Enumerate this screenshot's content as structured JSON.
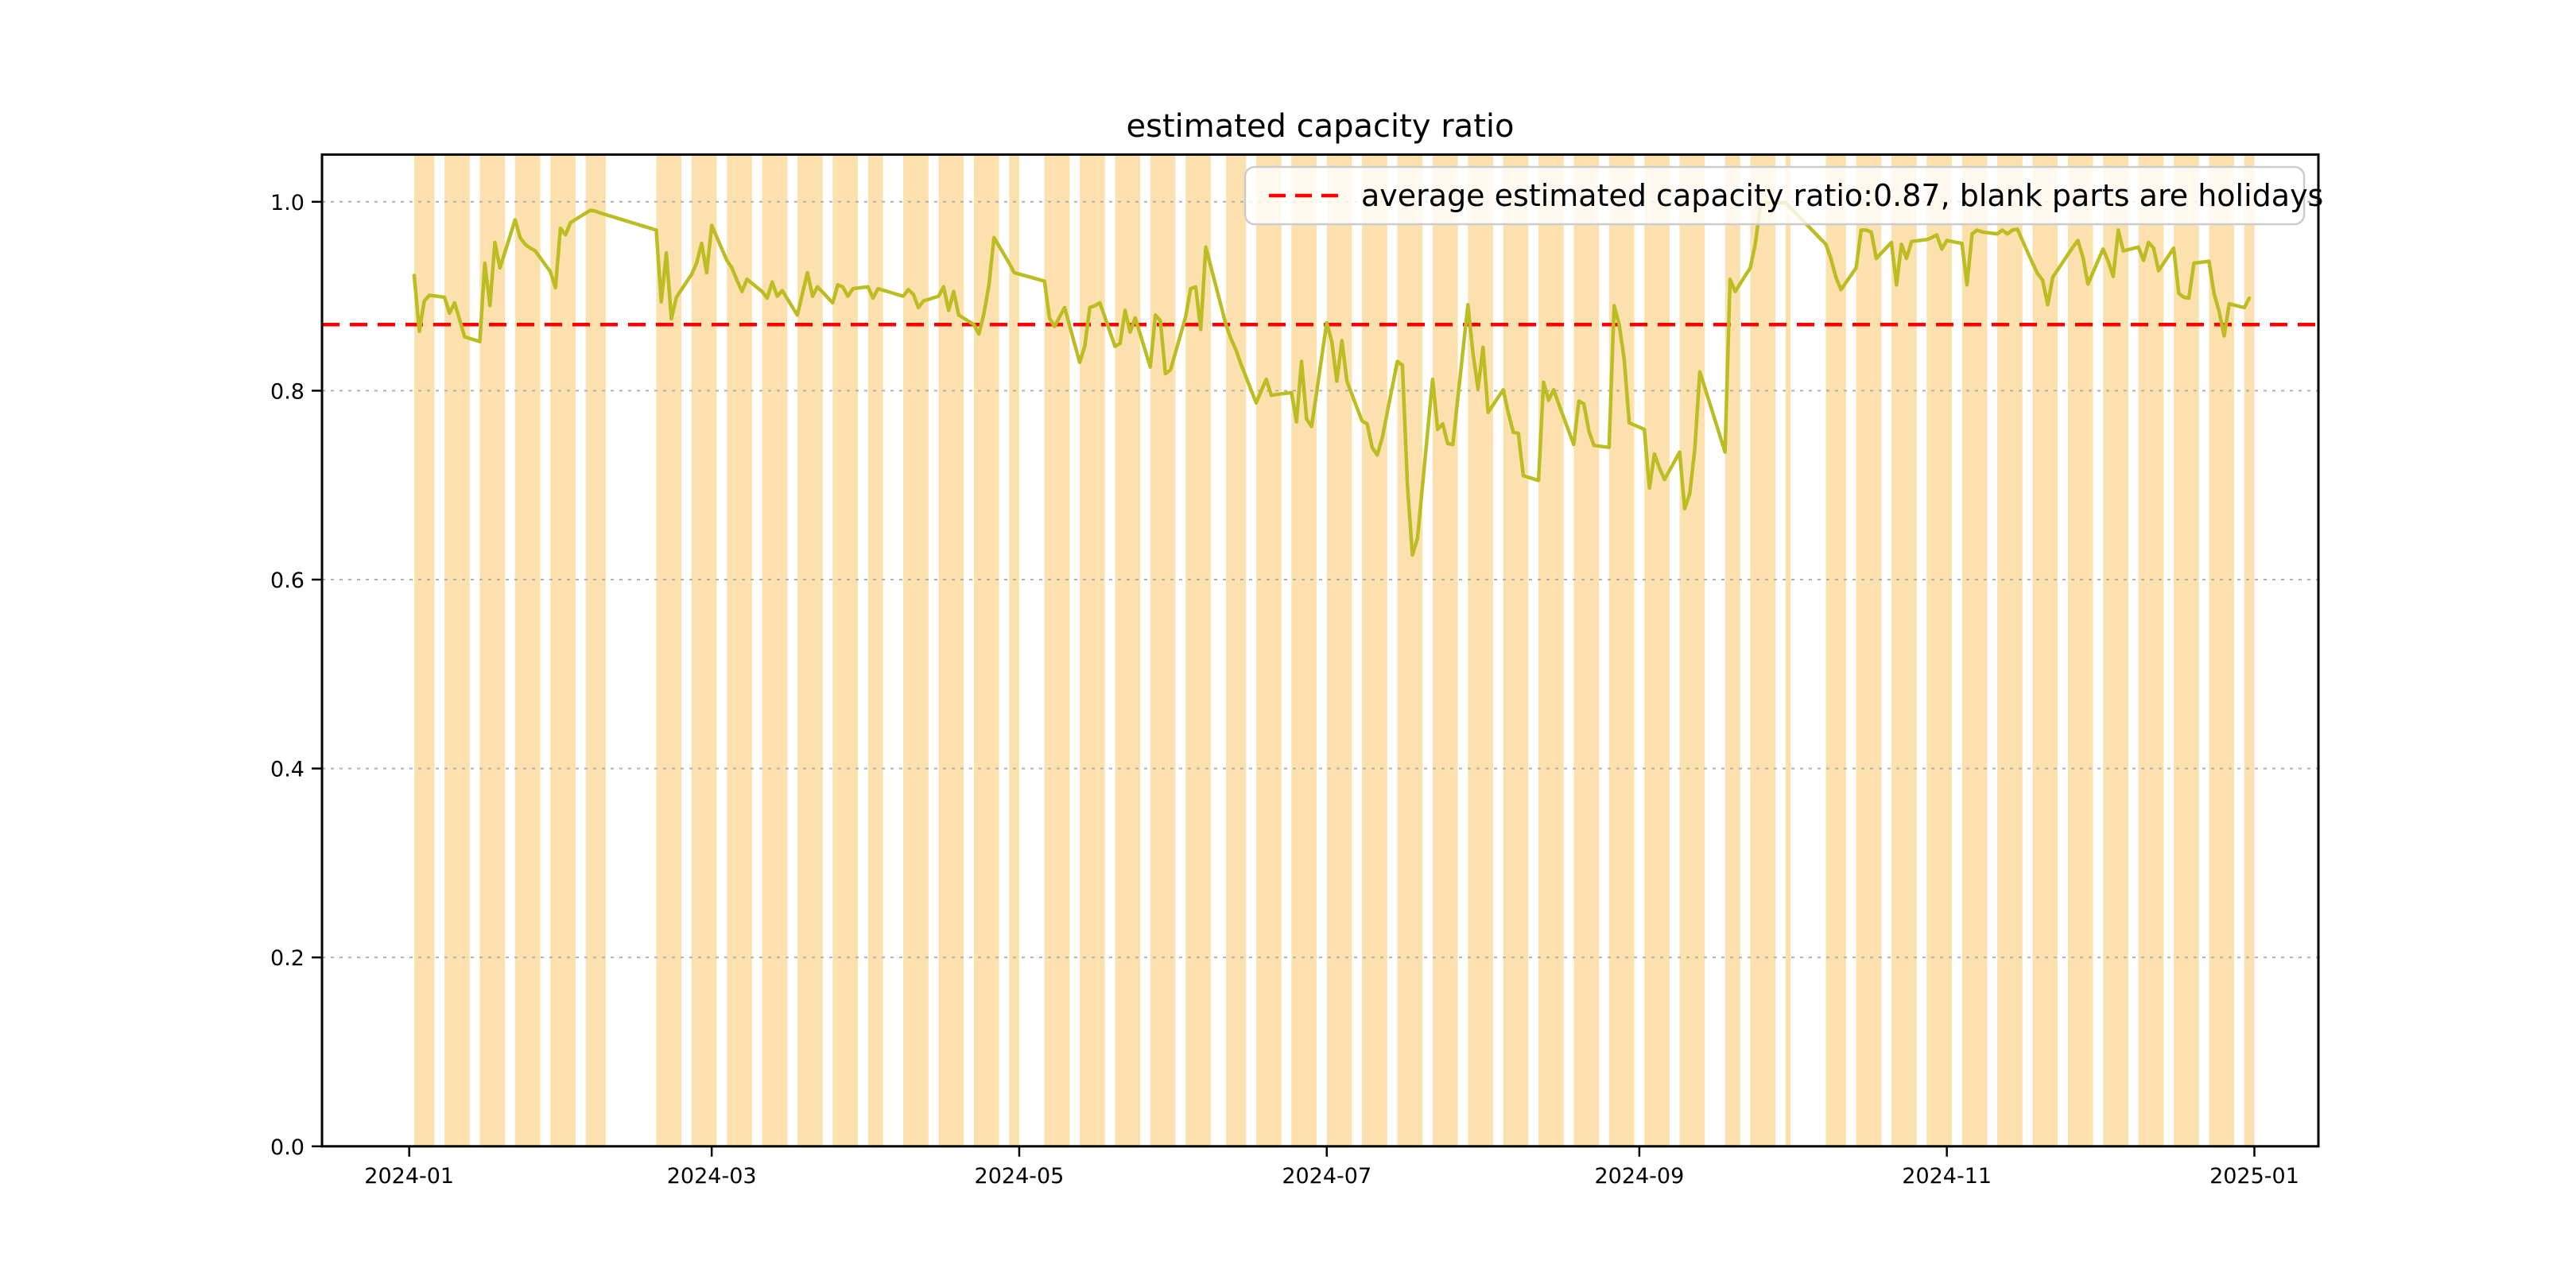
{
  "title": "estimated capacity ratio",
  "legend": {
    "label": "average estimated capacity ratio:0.87, blank parts are holidays",
    "marker_color": "#ff0000",
    "marker_style": "dashed",
    "box_border_color": "#cccccc",
    "box_fill": "rgba(255,255,255,0.8)"
  },
  "axes": {
    "x_tick_labels": [
      "2024-01",
      "2024-03",
      "2024-05",
      "2024-07",
      "2024-09",
      "2024-11",
      "2025-01"
    ],
    "x_tick_days": [
      0,
      60,
      121,
      182,
      244,
      305,
      366
    ],
    "y_tick_labels": [
      "0.0",
      "0.2",
      "0.4",
      "0.6",
      "0.8",
      "1.0"
    ],
    "y_tick_values": [
      0.0,
      0.2,
      0.4,
      0.6,
      0.8,
      1.0
    ],
    "y_gridline_values": [
      0.2,
      0.4,
      0.6,
      0.8,
      1.0
    ],
    "grid_color": "#b0b0b0",
    "spine_color": "#000000"
  },
  "chart_data": {
    "type": "line",
    "title": "estimated capacity ratio",
    "x_unit": "days since 2024-01-01 (trading days only; blank parts are holidays)",
    "xlim_days": [
      -17.3,
      378.7
    ],
    "ylim": [
      0.0,
      1.05
    ],
    "grid": "dashed horizontal",
    "legend_position": "upper right",
    "average_line": {
      "value": 0.87,
      "color": "#ff0000",
      "style": "dashed"
    },
    "holiday_bands": {
      "color": "#fce1ae",
      "weeks_day_spans": [
        [
          1,
          5
        ],
        [
          7,
          12
        ],
        [
          14,
          19
        ],
        [
          21,
          26
        ],
        [
          28,
          33
        ],
        [
          35,
          39
        ],
        [
          49,
          54
        ],
        [
          56,
          61
        ],
        [
          63,
          68
        ],
        [
          70,
          75
        ],
        [
          77,
          82
        ],
        [
          84,
          89
        ],
        [
          91,
          94
        ],
        [
          98,
          103
        ],
        [
          105,
          110
        ],
        [
          112,
          117
        ],
        [
          119,
          121
        ],
        [
          126,
          131
        ],
        [
          133,
          138
        ],
        [
          140,
          145
        ],
        [
          147,
          152
        ],
        [
          154,
          159
        ],
        [
          162,
          166
        ],
        [
          168,
          173
        ],
        [
          175,
          180
        ],
        [
          182,
          187
        ],
        [
          189,
          194
        ],
        [
          196,
          201
        ],
        [
          203,
          208
        ],
        [
          210,
          215
        ],
        [
          217,
          222
        ],
        [
          224,
          229
        ],
        [
          231,
          236
        ],
        [
          238,
          243
        ],
        [
          245,
          250
        ],
        [
          252,
          257
        ],
        [
          261,
          264
        ],
        [
          266,
          271
        ],
        [
          273,
          274
        ],
        [
          281,
          285
        ],
        [
          287,
          292
        ],
        [
          294,
          299
        ],
        [
          301,
          306
        ],
        [
          308,
          313
        ],
        [
          315,
          320
        ],
        [
          322,
          327
        ],
        [
          329,
          334
        ],
        [
          336,
          341
        ],
        [
          343,
          348
        ],
        [
          350,
          355
        ],
        [
          357,
          362
        ],
        [
          364,
          366
        ]
      ]
    },
    "series": [
      {
        "name": "estimated capacity ratio",
        "color": "#bcbd22",
        "points": [
          [
            1,
            0.922
          ],
          [
            2,
            0.863
          ],
          [
            3,
            0.895
          ],
          [
            4,
            0.901
          ],
          [
            7,
            0.899
          ],
          [
            8,
            0.882
          ],
          [
            9,
            0.893
          ],
          [
            10,
            0.875
          ],
          [
            11,
            0.857
          ],
          [
            14,
            0.852
          ],
          [
            15,
            0.935
          ],
          [
            16,
            0.89
          ],
          [
            17,
            0.957
          ],
          [
            18,
            0.93
          ],
          [
            21,
            0.981
          ],
          [
            22,
            0.962
          ],
          [
            23,
            0.955
          ],
          [
            24,
            0.951
          ],
          [
            25,
            0.948
          ],
          [
            28,
            0.926
          ],
          [
            29,
            0.909
          ],
          [
            30,
            0.972
          ],
          [
            31,
            0.965
          ],
          [
            32,
            0.978
          ],
          [
            35,
            0.988
          ],
          [
            36,
            0.991
          ],
          [
            37,
            0.99
          ],
          [
            38,
            0.988
          ],
          [
            49,
            0.97
          ],
          [
            50,
            0.894
          ],
          [
            51,
            0.946
          ],
          [
            52,
            0.876
          ],
          [
            53,
            0.899
          ],
          [
            56,
            0.923
          ],
          [
            57,
            0.935
          ],
          [
            58,
            0.956
          ],
          [
            59,
            0.925
          ],
          [
            60,
            0.975
          ],
          [
            63,
            0.938
          ],
          [
            64,
            0.93
          ],
          [
            65,
            0.917
          ],
          [
            66,
            0.905
          ],
          [
            67,
            0.918
          ],
          [
            70,
            0.905
          ],
          [
            71,
            0.898
          ],
          [
            72,
            0.915
          ],
          [
            73,
            0.9
          ],
          [
            74,
            0.906
          ],
          [
            77,
            0.88
          ],
          [
            78,
            0.903
          ],
          [
            79,
            0.925
          ],
          [
            80,
            0.9
          ],
          [
            81,
            0.91
          ],
          [
            84,
            0.893
          ],
          [
            85,
            0.912
          ],
          [
            86,
            0.91
          ],
          [
            87,
            0.9
          ],
          [
            88,
            0.908
          ],
          [
            91,
            0.91
          ],
          [
            92,
            0.898
          ],
          [
            93,
            0.908
          ],
          [
            98,
            0.9
          ],
          [
            99,
            0.907
          ],
          [
            100,
            0.902
          ],
          [
            101,
            0.888
          ],
          [
            102,
            0.895
          ],
          [
            105,
            0.9
          ],
          [
            106,
            0.91
          ],
          [
            107,
            0.885
          ],
          [
            108,
            0.905
          ],
          [
            109,
            0.88
          ],
          [
            112,
            0.87
          ],
          [
            113,
            0.86
          ],
          [
            114,
            0.882
          ],
          [
            115,
            0.912
          ],
          [
            116,
            0.962
          ],
          [
            119,
            0.935
          ],
          [
            120,
            0.925
          ],
          [
            126,
            0.916
          ],
          [
            127,
            0.877
          ],
          [
            128,
            0.868
          ],
          [
            129,
            0.878
          ],
          [
            130,
            0.888
          ],
          [
            133,
            0.83
          ],
          [
            134,
            0.847
          ],
          [
            135,
            0.888
          ],
          [
            136,
            0.89
          ],
          [
            137,
            0.893
          ],
          [
            140,
            0.847
          ],
          [
            141,
            0.85
          ],
          [
            142,
            0.885
          ],
          [
            143,
            0.862
          ],
          [
            144,
            0.877
          ],
          [
            147,
            0.825
          ],
          [
            148,
            0.88
          ],
          [
            149,
            0.874
          ],
          [
            150,
            0.818
          ],
          [
            151,
            0.822
          ],
          [
            154,
            0.878
          ],
          [
            155,
            0.908
          ],
          [
            156,
            0.91
          ],
          [
            157,
            0.865
          ],
          [
            158,
            0.952
          ],
          [
            162,
            0.87
          ],
          [
            163,
            0.855
          ],
          [
            164,
            0.843
          ],
          [
            165,
            0.828
          ],
          [
            168,
            0.787
          ],
          [
            169,
            0.8
          ],
          [
            170,
            0.812
          ],
          [
            171,
            0.795
          ],
          [
            172,
            0.796
          ],
          [
            175,
            0.798
          ],
          [
            176,
            0.767
          ],
          [
            177,
            0.831
          ],
          [
            178,
            0.77
          ],
          [
            179,
            0.762
          ],
          [
            182,
            0.872
          ],
          [
            183,
            0.852
          ],
          [
            184,
            0.81
          ],
          [
            185,
            0.853
          ],
          [
            186,
            0.81
          ],
          [
            189,
            0.768
          ],
          [
            190,
            0.765
          ],
          [
            191,
            0.74
          ],
          [
            192,
            0.732
          ],
          [
            193,
            0.75
          ],
          [
            196,
            0.831
          ],
          [
            197,
            0.827
          ],
          [
            198,
            0.7
          ],
          [
            199,
            0.626
          ],
          [
            200,
            0.644
          ],
          [
            203,
            0.812
          ],
          [
            204,
            0.759
          ],
          [
            205,
            0.765
          ],
          [
            206,
            0.744
          ],
          [
            207,
            0.743
          ],
          [
            210,
            0.891
          ],
          [
            211,
            0.84
          ],
          [
            212,
            0.802
          ],
          [
            213,
            0.846
          ],
          [
            214,
            0.777
          ],
          [
            217,
            0.801
          ],
          [
            218,
            0.777
          ],
          [
            219,
            0.756
          ],
          [
            220,
            0.755
          ],
          [
            221,
            0.71
          ],
          [
            224,
            0.705
          ],
          [
            225,
            0.809
          ],
          [
            226,
            0.79
          ],
          [
            227,
            0.801
          ],
          [
            228,
            0.786
          ],
          [
            231,
            0.743
          ],
          [
            232,
            0.789
          ],
          [
            233,
            0.786
          ],
          [
            234,
            0.757
          ],
          [
            235,
            0.742
          ],
          [
            238,
            0.74
          ],
          [
            239,
            0.89
          ],
          [
            240,
            0.87
          ],
          [
            241,
            0.833
          ],
          [
            242,
            0.766
          ],
          [
            245,
            0.759
          ],
          [
            246,
            0.697
          ],
          [
            247,
            0.733
          ],
          [
            248,
            0.718
          ],
          [
            249,
            0.706
          ],
          [
            252,
            0.735
          ],
          [
            253,
            0.675
          ],
          [
            254,
            0.691
          ],
          [
            255,
            0.738
          ],
          [
            256,
            0.82
          ],
          [
            261,
            0.735
          ],
          [
            262,
            0.918
          ],
          [
            263,
            0.905
          ],
          [
            266,
            0.93
          ],
          [
            267,
            0.955
          ],
          [
            268,
            0.995
          ],
          [
            269,
            0.999
          ],
          [
            270,
            0.999
          ],
          [
            273,
            0.999
          ],
          [
            281,
            0.955
          ],
          [
            282,
            0.94
          ],
          [
            283,
            0.92
          ],
          [
            284,
            0.907
          ],
          [
            287,
            0.93
          ],
          [
            288,
            0.97
          ],
          [
            289,
            0.97
          ],
          [
            290,
            0.968
          ],
          [
            291,
            0.94
          ],
          [
            294,
            0.957
          ],
          [
            295,
            0.912
          ],
          [
            296,
            0.955
          ],
          [
            297,
            0.94
          ],
          [
            298,
            0.958
          ],
          [
            301,
            0.96
          ],
          [
            302,
            0.962
          ],
          [
            303,
            0.965
          ],
          [
            304,
            0.95
          ],
          [
            305,
            0.959
          ],
          [
            308,
            0.956
          ],
          [
            309,
            0.912
          ],
          [
            310,
            0.966
          ],
          [
            311,
            0.97
          ],
          [
            312,
            0.968
          ],
          [
            315,
            0.966
          ],
          [
            316,
            0.97
          ],
          [
            317,
            0.966
          ],
          [
            318,
            0.97
          ],
          [
            319,
            0.971
          ],
          [
            322,
            0.935
          ],
          [
            323,
            0.924
          ],
          [
            324,
            0.917
          ],
          [
            325,
            0.891
          ],
          [
            326,
            0.92
          ],
          [
            329,
            0.944
          ],
          [
            330,
            0.952
          ],
          [
            331,
            0.959
          ],
          [
            332,
            0.941
          ],
          [
            333,
            0.913
          ],
          [
            336,
            0.95
          ],
          [
            337,
            0.937
          ],
          [
            338,
            0.921
          ],
          [
            339,
            0.97
          ],
          [
            340,
            0.948
          ],
          [
            343,
            0.952
          ],
          [
            344,
            0.938
          ],
          [
            345,
            0.957
          ],
          [
            346,
            0.951
          ],
          [
            347,
            0.927
          ],
          [
            350,
            0.951
          ],
          [
            351,
            0.903
          ],
          [
            352,
            0.899
          ],
          [
            353,
            0.898
          ],
          [
            354,
            0.935
          ],
          [
            357,
            0.937
          ],
          [
            358,
            0.903
          ],
          [
            359,
            0.884
          ],
          [
            360,
            0.858
          ],
          [
            361,
            0.892
          ],
          [
            364,
            0.888
          ],
          [
            365,
            0.898
          ]
        ]
      }
    ]
  }
}
